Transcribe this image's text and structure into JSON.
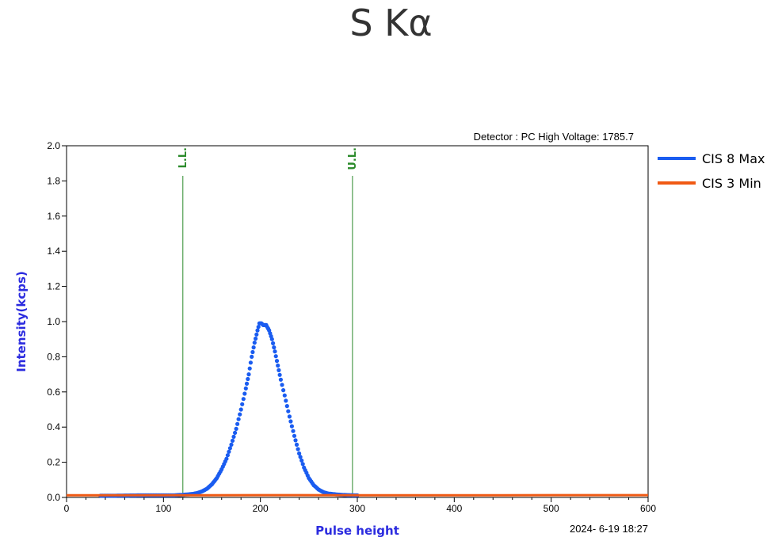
{
  "chart_data": {
    "type": "scatter",
    "title": "S Kα",
    "xlabel": "Pulse height",
    "ylabel": "Intensity(kcps)",
    "xlim": [
      0,
      600
    ],
    "ylim": [
      0,
      2.0
    ],
    "x_ticks": [
      "0",
      "100",
      "200",
      "300",
      "400",
      "500",
      "600"
    ],
    "y_ticks": [
      "0.0",
      "0.2",
      "0.4",
      "0.6",
      "0.8",
      "1.0",
      "1.2",
      "1.4",
      "1.6",
      "1.8",
      "2.0"
    ],
    "grid": false,
    "legend_position": "right",
    "note": "Detector : PC High Voltage: 1785.7",
    "timestamp": "2024- 6-19 18:27",
    "markers": [
      {
        "label": "L.L.",
        "x": 120,
        "color": "#2a8a2a"
      },
      {
        "label": "U.L.",
        "x": 295,
        "color": "#2a8a2a"
      }
    ],
    "series": [
      {
        "name": "CIS 8 Max",
        "color": "#1a5cf0",
        "points": [
          [
            35,
            0.01
          ],
          [
            50,
            0.01
          ],
          [
            80,
            0.012
          ],
          [
            100,
            0.012
          ],
          [
            110,
            0.012
          ],
          [
            120,
            0.015
          ],
          [
            125,
            0.017
          ],
          [
            130,
            0.02
          ],
          [
            135,
            0.025
          ],
          [
            140,
            0.035
          ],
          [
            145,
            0.05
          ],
          [
            150,
            0.075
          ],
          [
            155,
            0.11
          ],
          [
            160,
            0.16
          ],
          [
            165,
            0.22
          ],
          [
            170,
            0.3
          ],
          [
            175,
            0.39
          ],
          [
            180,
            0.5
          ],
          [
            185,
            0.62
          ],
          [
            188,
            0.7
          ],
          [
            191,
            0.8
          ],
          [
            194,
            0.88
          ],
          [
            197,
            0.95
          ],
          [
            199,
            0.99
          ],
          [
            201,
            0.99
          ],
          [
            203,
            0.98
          ],
          [
            206,
            0.98
          ],
          [
            209,
            0.95
          ],
          [
            212,
            0.9
          ],
          [
            215,
            0.83
          ],
          [
            218,
            0.75
          ],
          [
            221,
            0.67
          ],
          [
            225,
            0.58
          ],
          [
            230,
            0.46
          ],
          [
            235,
            0.35
          ],
          [
            240,
            0.25
          ],
          [
            245,
            0.17
          ],
          [
            250,
            0.11
          ],
          [
            255,
            0.07
          ],
          [
            260,
            0.045
          ],
          [
            265,
            0.03
          ],
          [
            270,
            0.022
          ],
          [
            280,
            0.016
          ],
          [
            290,
            0.013
          ],
          [
            300,
            0.012
          ]
        ]
      },
      {
        "name": "CIS 3 Min",
        "color": "#f05a14",
        "points": [
          [
            0,
            0.012
          ],
          [
            100,
            0.012
          ],
          [
            200,
            0.013
          ],
          [
            300,
            0.012
          ],
          [
            400,
            0.012
          ],
          [
            500,
            0.013
          ],
          [
            600,
            0.013
          ]
        ]
      }
    ]
  }
}
